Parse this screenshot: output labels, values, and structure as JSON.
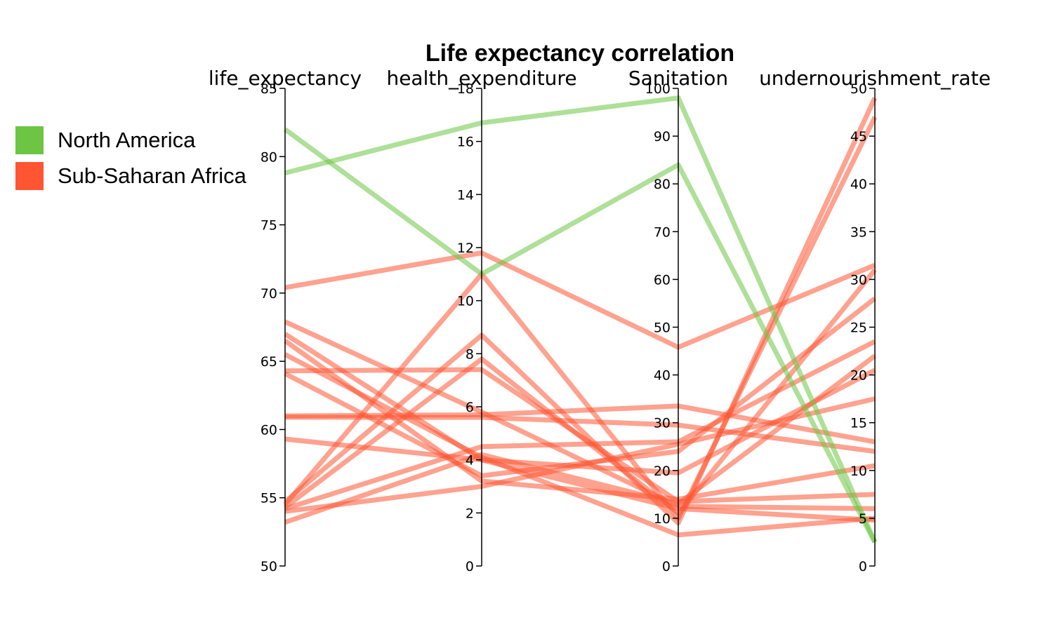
{
  "chart_data": {
    "type": "line",
    "title": "Life expectancy correlation",
    "dimensions": [
      {
        "key": "life_expectancy",
        "label": "life_expectancy",
        "range": [
          50,
          85
        ],
        "ticks": [
          50,
          55,
          60,
          65,
          70,
          75,
          80,
          85
        ]
      },
      {
        "key": "health_expenditure",
        "label": "health_expenditure",
        "range": [
          0,
          18
        ],
        "ticks": [
          0,
          2,
          4,
          6,
          8,
          10,
          12,
          14,
          16,
          18
        ]
      },
      {
        "key": "Sanitation",
        "label": "Sanitation",
        "range": [
          0,
          100
        ],
        "ticks": [
          0,
          10,
          20,
          30,
          40,
          50,
          60,
          70,
          80,
          90,
          100
        ]
      },
      {
        "key": "undernourishment_rate",
        "label": "undernourishment_rate",
        "range": [
          0,
          50
        ],
        "ticks": [
          0,
          5,
          10,
          15,
          20,
          25,
          30,
          35,
          40,
          45,
          50
        ]
      }
    ],
    "legend": [
      {
        "name": "North America",
        "color": "#6cc644"
      },
      {
        "name": "Sub-Saharan Africa",
        "color": "#ff5533"
      }
    ],
    "series": [
      {
        "group": "North America",
        "values": [
          78.8,
          16.7,
          98.0,
          2.5
        ]
      },
      {
        "group": "North America",
        "values": [
          82.0,
          11.0,
          84.0,
          2.5
        ]
      },
      {
        "group": "Sub-Saharan Africa",
        "values": [
          70.4,
          11.8,
          45.8,
          31.5
        ]
      },
      {
        "group": "Sub-Saharan Africa",
        "values": [
          67.9,
          5.8,
          12.5,
          6.0
        ]
      },
      {
        "group": "Sub-Saharan Africa",
        "values": [
          67.0,
          4.0,
          12.0,
          4.8
        ]
      },
      {
        "group": "Sub-Saharan Africa",
        "values": [
          66.5,
          3.2,
          14.0,
          10.5
        ]
      },
      {
        "group": "Sub-Saharan Africa",
        "values": [
          65.5,
          4.1,
          6.5,
          5.0
        ]
      },
      {
        "group": "Sub-Saharan Africa",
        "values": [
          64.3,
          7.4,
          13.5,
          7.5
        ]
      },
      {
        "group": "Sub-Saharan Africa",
        "values": [
          64.1,
          3.4,
          24.0,
          28.0
        ]
      },
      {
        "group": "Sub-Saharan Africa",
        "values": [
          61.0,
          5.7,
          33.5,
          13.0
        ]
      },
      {
        "group": "Sub-Saharan Africa",
        "values": [
          60.9,
          5.6,
          29.5,
          12.0
        ]
      },
      {
        "group": "Sub-Saharan Africa",
        "values": [
          59.3,
          4.0,
          19.5,
          20.5
        ]
      },
      {
        "group": "Sub-Saharan Africa",
        "values": [
          54.7,
          8.7,
          9.0,
          49.0
        ]
      },
      {
        "group": "Sub-Saharan Africa",
        "values": [
          54.5,
          11.0,
          10.0,
          47.0
        ]
      },
      {
        "group": "Sub-Saharan Africa",
        "values": [
          54.3,
          7.8,
          11.0,
          31.0
        ]
      },
      {
        "group": "Sub-Saharan Africa",
        "values": [
          54.2,
          4.5,
          26.0,
          23.5
        ]
      },
      {
        "group": "Sub-Saharan Africa",
        "values": [
          54.0,
          3.0,
          25.5,
          17.5
        ]
      },
      {
        "group": "Sub-Saharan Africa",
        "values": [
          53.2,
          4.2,
          13.0,
          22.0
        ]
      }
    ]
  }
}
